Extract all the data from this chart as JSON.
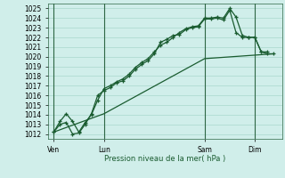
{
  "bg_color": "#d0eeea",
  "grid_color": "#a8d8cc",
  "line_color": "#1a5c30",
  "xlabel": "Pression niveau de la mer( hPa )",
  "ylim": [
    1011.5,
    1025.5
  ],
  "yticks": [
    1012,
    1013,
    1014,
    1015,
    1016,
    1017,
    1018,
    1019,
    1020,
    1021,
    1022,
    1023,
    1024,
    1025
  ],
  "xtick_labels": [
    "Ven",
    "Lun",
    "Sam",
    "Dim"
  ],
  "xtick_positions": [
    0,
    48,
    144,
    192
  ],
  "vline_positions": [
    0,
    48,
    144,
    192
  ],
  "series1_x": [
    0,
    6,
    12,
    18,
    24,
    30,
    36,
    42,
    48,
    54,
    60,
    66,
    72,
    78,
    84,
    90,
    96,
    102,
    108,
    114,
    120,
    126,
    132,
    138,
    144,
    150,
    156,
    162,
    168,
    174,
    180,
    186,
    192,
    198,
    204,
    210
  ],
  "series1_y": [
    1012.2,
    1013.3,
    1014.1,
    1013.3,
    1012.2,
    1013.2,
    1014.0,
    1015.5,
    1016.7,
    1017.0,
    1017.4,
    1017.7,
    1018.2,
    1018.9,
    1019.4,
    1019.8,
    1020.5,
    1021.2,
    1021.5,
    1022.0,
    1022.5,
    1022.9,
    1023.1,
    1023.2,
    1024.0,
    1024.0,
    1024.1,
    1024.0,
    1025.0,
    1024.1,
    1022.2,
    1022.0,
    1022.0,
    1020.5,
    1020.3,
    1020.3
  ],
  "series2_x": [
    0,
    6,
    12,
    18,
    24,
    30,
    36,
    42,
    48,
    54,
    60,
    66,
    72,
    78,
    84,
    90,
    96,
    102,
    108,
    114,
    120,
    126,
    132,
    138,
    144,
    150,
    156,
    162,
    168,
    174,
    180,
    186,
    192,
    198,
    204
  ],
  "series2_y": [
    1012.2,
    1013.0,
    1013.2,
    1012.0,
    1012.1,
    1013.0,
    1014.1,
    1016.0,
    1016.5,
    1016.8,
    1017.3,
    1017.5,
    1018.0,
    1018.7,
    1019.2,
    1019.6,
    1020.3,
    1021.5,
    1021.8,
    1022.2,
    1022.3,
    1022.8,
    1023.0,
    1023.1,
    1023.9,
    1023.9,
    1024.0,
    1023.8,
    1024.8,
    1022.5,
    1022.0,
    1022.0,
    1022.0,
    1020.5,
    1020.5
  ],
  "series3_x": [
    0,
    48,
    144,
    210
  ],
  "series3_y": [
    1012.2,
    1014.1,
    1019.8,
    1020.3
  ],
  "xlim": [
    -5,
    218
  ]
}
